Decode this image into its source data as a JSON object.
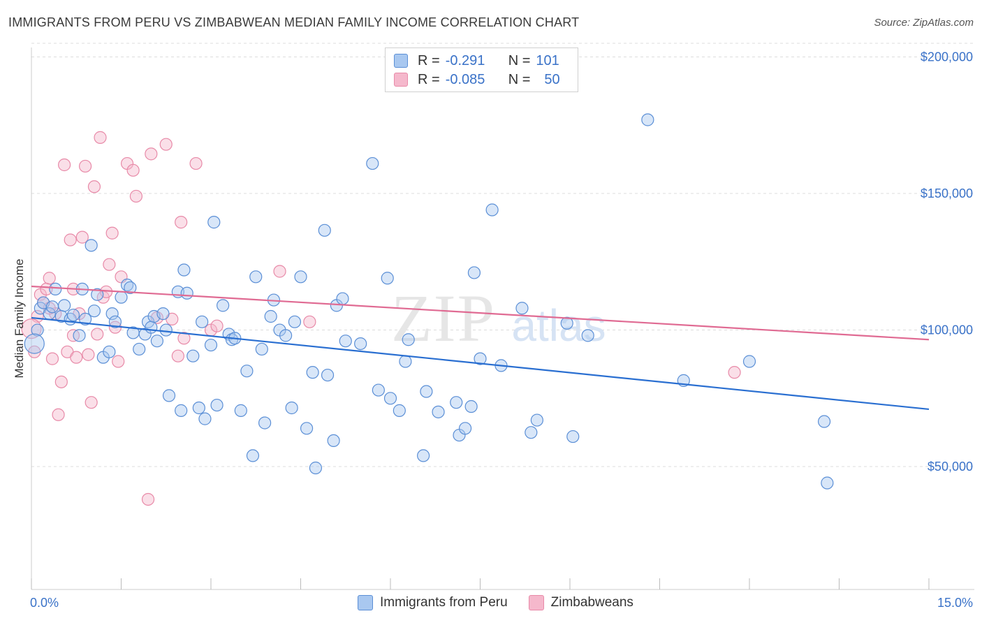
{
  "header": {
    "title": "IMMIGRANTS FROM PERU VS ZIMBABWEAN MEDIAN FAMILY INCOME CORRELATION CHART",
    "source": "Source: ZipAtlas.com"
  },
  "legend": {
    "row1": {
      "r_label": "R =",
      "r_value": "-0.291",
      "n_label": "N =",
      "n_value": "101"
    },
    "row2": {
      "r_label": "R =",
      "r_value": "-0.085",
      "n_label": "N =",
      "n_value": "50"
    }
  },
  "bottom_legend": {
    "item1": "Immigrants from Peru",
    "item2": "Zimbabweans"
  },
  "watermark": {
    "zip": "ZIP",
    "atlas": "atlas"
  },
  "colors": {
    "blue_fill": "#a9c8f0",
    "blue_stroke": "#5b8fd6",
    "blue_line": "#2a6fd1",
    "pink_fill": "#f5b8cc",
    "pink_stroke": "#e88aa8",
    "pink_line": "#e06b93",
    "axis_text": "#3a72c8",
    "grid": "#dcdcdc"
  },
  "chart_data": {
    "type": "scatter",
    "title": "IMMIGRANTS FROM PERU VS ZIMBABWEAN MEDIAN FAMILY INCOME CORRELATION CHART",
    "xlabel": "",
    "ylabel": "Median Family Income",
    "xlim": [
      0,
      15
    ],
    "ylim": [
      5000,
      205000
    ],
    "x_tick_labels": [
      "0.0%",
      "15.0%"
    ],
    "y_ticks": [
      50000,
      100000,
      150000,
      200000
    ],
    "y_tick_labels": [
      "$50,000",
      "$100,000",
      "$150,000",
      "$200,000"
    ],
    "grid": true,
    "legend_position": "top-center",
    "series": [
      {
        "name": "Immigrants from Peru",
        "r": -0.291,
        "n": 101,
        "trend": {
          "x": [
            0.0,
            15.0
          ],
          "y": [
            104500,
            71000
          ]
        },
        "points": [
          [
            0.1,
            100000
          ],
          [
            0.15,
            108000
          ],
          [
            0.2,
            110000
          ],
          [
            0.3,
            106000
          ],
          [
            0.35,
            108500
          ],
          [
            0.4,
            115000
          ],
          [
            0.5,
            105000
          ],
          [
            0.55,
            109000
          ],
          [
            0.65,
            104000
          ],
          [
            0.7,
            105500
          ],
          [
            0.8,
            98000
          ],
          [
            0.85,
            115000
          ],
          [
            0.9,
            104000
          ],
          [
            1.0,
            131000
          ],
          [
            1.05,
            107000
          ],
          [
            1.1,
            113000
          ],
          [
            1.2,
            90000
          ],
          [
            1.3,
            92000
          ],
          [
            1.35,
            106000
          ],
          [
            1.4,
            103000
          ],
          [
            1.5,
            112000
          ],
          [
            1.6,
            116500
          ],
          [
            1.65,
            115500
          ],
          [
            1.7,
            99000
          ],
          [
            1.8,
            93000
          ],
          [
            1.9,
            98500
          ],
          [
            1.95,
            103000
          ],
          [
            2.0,
            101000
          ],
          [
            2.05,
            105000
          ],
          [
            2.1,
            96000
          ],
          [
            2.2,
            106000
          ],
          [
            2.25,
            100000
          ],
          [
            2.3,
            76000
          ],
          [
            2.45,
            114000
          ],
          [
            2.5,
            70500
          ],
          [
            2.55,
            122000
          ],
          [
            2.6,
            113500
          ],
          [
            2.7,
            90500
          ],
          [
            2.8,
            71500
          ],
          [
            2.85,
            103000
          ],
          [
            2.9,
            67500
          ],
          [
            3.0,
            94500
          ],
          [
            3.05,
            139500
          ],
          [
            3.1,
            72500
          ],
          [
            3.2,
            109000
          ],
          [
            3.3,
            98500
          ],
          [
            3.35,
            96500
          ],
          [
            3.4,
            97000
          ],
          [
            3.5,
            70500
          ],
          [
            3.6,
            85000
          ],
          [
            3.7,
            54000
          ],
          [
            3.75,
            119500
          ],
          [
            3.85,
            93000
          ],
          [
            3.9,
            66000
          ],
          [
            4.0,
            105000
          ],
          [
            4.05,
            111000
          ],
          [
            4.15,
            100000
          ],
          [
            4.25,
            98000
          ],
          [
            4.35,
            71500
          ],
          [
            4.4,
            103000
          ],
          [
            4.5,
            119500
          ],
          [
            4.6,
            64000
          ],
          [
            4.7,
            84500
          ],
          [
            4.75,
            49500
          ],
          [
            4.9,
            136500
          ],
          [
            4.95,
            83500
          ],
          [
            5.05,
            59500
          ],
          [
            5.1,
            109000
          ],
          [
            5.2,
            111500
          ],
          [
            5.25,
            96000
          ],
          [
            5.5,
            95000
          ],
          [
            5.7,
            161000
          ],
          [
            5.8,
            78000
          ],
          [
            5.95,
            119000
          ],
          [
            6.0,
            75000
          ],
          [
            6.15,
            70500
          ],
          [
            6.25,
            88500
          ],
          [
            6.3,
            96500
          ],
          [
            6.55,
            54000
          ],
          [
            6.6,
            77500
          ],
          [
            6.8,
            70000
          ],
          [
            7.1,
            73500
          ],
          [
            7.15,
            61500
          ],
          [
            7.25,
            64000
          ],
          [
            7.35,
            72000
          ],
          [
            7.4,
            121000
          ],
          [
            7.5,
            89500
          ],
          [
            7.7,
            144000
          ],
          [
            7.85,
            87000
          ],
          [
            8.2,
            108000
          ],
          [
            8.35,
            62500
          ],
          [
            8.45,
            67000
          ],
          [
            8.95,
            102500
          ],
          [
            9.05,
            61000
          ],
          [
            9.3,
            98000
          ],
          [
            10.3,
            177000
          ],
          [
            10.9,
            81500
          ],
          [
            12.0,
            88500
          ],
          [
            13.25,
            66500
          ],
          [
            13.3,
            44000
          ],
          [
            0.05,
            95000
          ]
        ]
      },
      {
        "name": "Zimbabweans",
        "r": -0.085,
        "n": 50,
        "trend": {
          "x": [
            0.0,
            15.0
          ],
          "y": [
            116000,
            96500
          ]
        },
        "points": [
          [
            0.05,
            92000
          ],
          [
            0.1,
            105000
          ],
          [
            0.15,
            113000
          ],
          [
            0.2,
            110000
          ],
          [
            0.25,
            115000
          ],
          [
            0.3,
            119000
          ],
          [
            0.35,
            89500
          ],
          [
            0.4,
            106000
          ],
          [
            0.45,
            69000
          ],
          [
            0.5,
            81000
          ],
          [
            0.55,
            160500
          ],
          [
            0.6,
            92000
          ],
          [
            0.65,
            133000
          ],
          [
            0.7,
            98000
          ],
          [
            0.75,
            90000
          ],
          [
            0.8,
            106000
          ],
          [
            0.85,
            134000
          ],
          [
            0.9,
            160000
          ],
          [
            0.95,
            91000
          ],
          [
            1.0,
            73500
          ],
          [
            1.05,
            152500
          ],
          [
            1.1,
            98500
          ],
          [
            1.15,
            170500
          ],
          [
            1.2,
            112000
          ],
          [
            1.25,
            114000
          ],
          [
            1.3,
            124000
          ],
          [
            1.35,
            135500
          ],
          [
            1.4,
            101000
          ],
          [
            1.45,
            88500
          ],
          [
            1.5,
            119500
          ],
          [
            1.6,
            161000
          ],
          [
            1.7,
            158500
          ],
          [
            1.75,
            149000
          ],
          [
            1.95,
            38000
          ],
          [
            2.0,
            164500
          ],
          [
            2.1,
            104500
          ],
          [
            2.25,
            168000
          ],
          [
            2.35,
            104000
          ],
          [
            2.45,
            90500
          ],
          [
            2.5,
            139500
          ],
          [
            2.55,
            97000
          ],
          [
            2.75,
            161000
          ],
          [
            3.0,
            100000
          ],
          [
            3.1,
            101500
          ],
          [
            4.15,
            121500
          ],
          [
            4.65,
            103000
          ],
          [
            11.75,
            84500
          ],
          [
            0.0,
            100500
          ],
          [
            0.3,
            108000
          ],
          [
            0.7,
            115000
          ]
        ]
      }
    ]
  }
}
